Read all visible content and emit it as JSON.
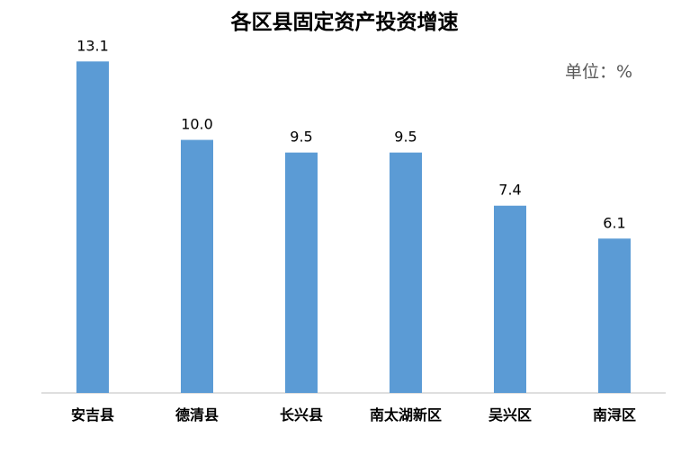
{
  "chart_data": {
    "type": "bar",
    "title": "各区县固定资产投资增速",
    "unit_label": "单位：%",
    "categories": [
      "安吉县",
      "德清县",
      "长兴县",
      "南太湖新区",
      "吴兴区",
      "南浔区"
    ],
    "values": [
      13.1,
      10.0,
      9.5,
      9.5,
      7.4,
      6.1
    ],
    "value_labels": [
      "13.1",
      "10.0",
      "9.5",
      "9.5",
      "7.4",
      "6.1"
    ],
    "ylim": [
      0,
      14
    ],
    "grid": false,
    "legend": "none",
    "colors": {
      "bar": "#5b9bd5",
      "axis": "#bfbfbf",
      "text": "#000000",
      "unit_text": "#595959"
    }
  }
}
